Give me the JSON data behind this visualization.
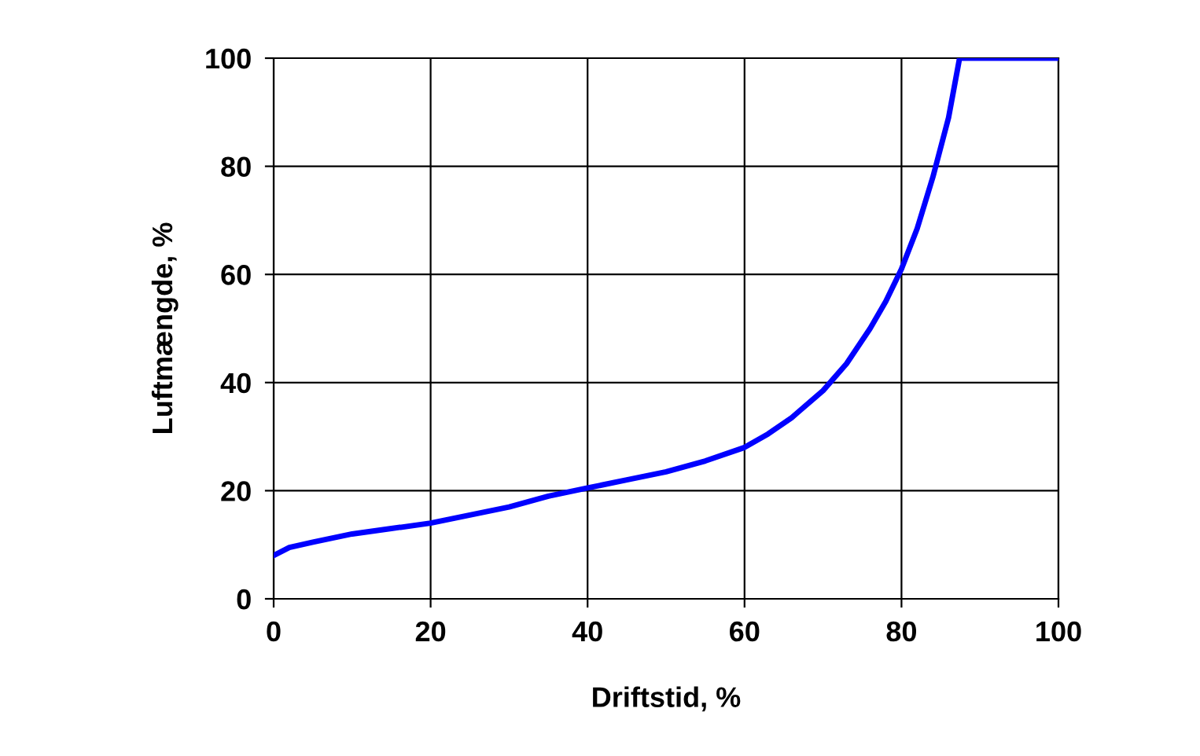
{
  "chart_data": {
    "type": "line",
    "xlabel": "Driftstid, %",
    "ylabel": "Luftmængde, %",
    "series": [
      {
        "color": "#0000ff",
        "x": [
          0,
          2,
          5,
          10,
          15,
          20,
          25,
          30,
          35,
          40,
          45,
          50,
          55,
          60,
          63,
          66,
          70,
          73,
          76,
          78,
          80,
          82,
          84,
          86,
          87.4,
          90,
          95,
          100
        ],
        "values": [
          8,
          9.5,
          10.5,
          12,
          13,
          14,
          15.5,
          17,
          19,
          20.5,
          22,
          23.5,
          25.5,
          28,
          30.5,
          33.5,
          38.5,
          43.5,
          50,
          55,
          61,
          68.5,
          78,
          89,
          100,
          100,
          100,
          100
        ]
      }
    ],
    "xlim": [
      0,
      100
    ],
    "ylim": [
      0,
      100
    ],
    "xticks": [
      0,
      20,
      40,
      60,
      80,
      100
    ],
    "yticks": [
      0,
      20,
      40,
      60,
      80,
      100
    ],
    "grid": true,
    "legend": false,
    "marker": "none",
    "line_style": "solid"
  }
}
